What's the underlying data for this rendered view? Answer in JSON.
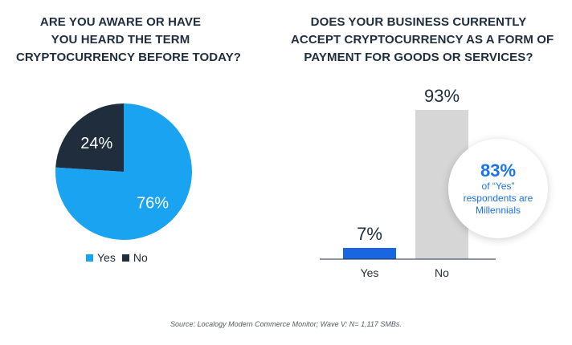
{
  "colors": {
    "yes_pie": "#1aa3f0",
    "no_pie": "#1f2d3d",
    "yes_bar": "#1a66e0",
    "no_bar": "#d6d6d6",
    "axis": "#1f2d3d",
    "callout_text": "#1a73e8"
  },
  "left_chart": {
    "title_lines": [
      "ARE YOU AWARE OR HAVE",
      "YOU HEARD THE TERM",
      "CRYPTOCURRENCY BEFORE TODAY?"
    ]
  },
  "right_chart": {
    "title_lines": [
      "DOES YOUR BUSINESS CURRENTLY",
      "ACCEPT CRYPTOCURRENCY AS A FORM OF",
      "PAYMENT FOR GOODS OR SERVICES?"
    ]
  },
  "callout": {
    "percent": "83%",
    "lines": [
      "of “Yes”",
      "respondents are",
      "Millennials"
    ]
  },
  "legend": {
    "items": [
      {
        "label": "Yes",
        "color": "#1aa3f0"
      },
      {
        "label": "No",
        "color": "#1f2d3d"
      }
    ]
  },
  "source": "Source: Localogy Modern Commerce Monitor; Wave V: N= 1,117 SMBs.",
  "chart_data": [
    {
      "type": "pie",
      "title": "ARE YOU AWARE OR HAVE YOU HEARD THE TERM CRYPTOCURRENCY BEFORE TODAY?",
      "categories": [
        "Yes",
        "No"
      ],
      "values": [
        76,
        24
      ],
      "labels": [
        "76%",
        "24%"
      ],
      "colors": [
        "#1aa3f0",
        "#1f2d3d"
      ],
      "legend": "bottom"
    },
    {
      "type": "bar",
      "title": "DOES YOUR BUSINESS CURRENTLY ACCEPT CRYPTOCURRENCY AS A FORM OF PAYMENT FOR GOODS OR SERVICES?",
      "categories": [
        "Yes",
        "No"
      ],
      "values": [
        7,
        93
      ],
      "labels": [
        "7%",
        "93%"
      ],
      "colors": [
        "#1a66e0",
        "#d6d6d6"
      ],
      "ylim": [
        0,
        100
      ],
      "grid": false
    }
  ]
}
